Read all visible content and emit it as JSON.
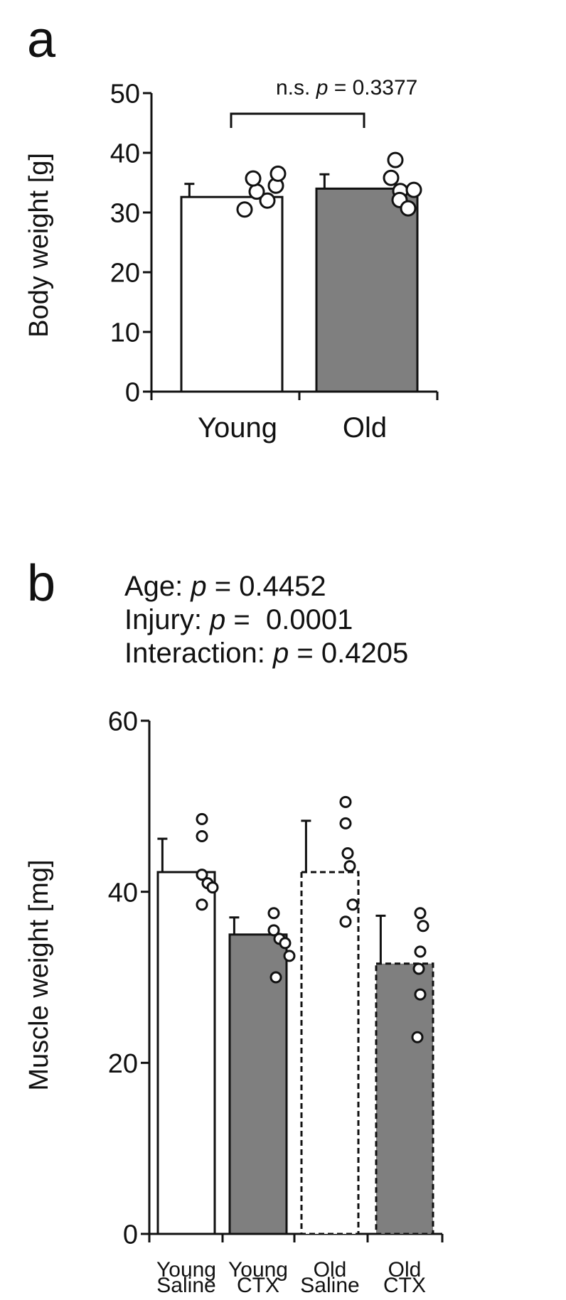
{
  "chart_data": [
    {
      "panel": "a",
      "type": "bar",
      "ylabel": "Body weight [g]",
      "ylim": [
        0,
        50
      ],
      "yticks": [
        "0",
        "10",
        "20",
        "30",
        "40",
        "50"
      ],
      "ytick_values": [
        0,
        10,
        20,
        30,
        40,
        50
      ],
      "categories": [
        "Young",
        "Old"
      ],
      "values": [
        32.6,
        34.0
      ],
      "errors": [
        2.2,
        2.4
      ],
      "bar_fills": [
        "#ffffff",
        "#7f7f7f"
      ],
      "bar_dashed": [
        false,
        false
      ],
      "points": [
        [
          32.0,
          33.5,
          34.5,
          35.7,
          36.5,
          30.5
        ],
        [
          33.6,
          35.8,
          38.8,
          33.8,
          32.1,
          30.7
        ]
      ],
      "annotation": {
        "prefix": "n.s. ",
        "p": "p",
        "value": " = 0.3377"
      }
    },
    {
      "panel": "b",
      "type": "bar",
      "ylabel": "Muscle weight [mg]",
      "ylim": [
        0,
        60
      ],
      "yticks": [
        "0",
        "20",
        "40",
        "60"
      ],
      "ytick_values": [
        0,
        20,
        40,
        60
      ],
      "categories": [
        [
          "Young",
          "Saline"
        ],
        [
          "Young",
          "CTX"
        ],
        [
          "Old",
          "Saline"
        ],
        [
          "Old",
          "CTX"
        ]
      ],
      "values": [
        42.3,
        35.0,
        42.3,
        31.6
      ],
      "errors": [
        3.9,
        2.0,
        6.0,
        5.6
      ],
      "bar_fills": [
        "#ffffff",
        "#7f7f7f",
        "#ffffff",
        "#7f7f7f"
      ],
      "bar_dashed": [
        false,
        false,
        true,
        true
      ],
      "points": [
        [
          48.5,
          46.5,
          42.0,
          41.0,
          38.5,
          40.5
        ],
        [
          37.5,
          35.5,
          34.5,
          34.0,
          32.5,
          30.0
        ],
        [
          50.5,
          48.0,
          44.5,
          43.0,
          38.5,
          36.5
        ],
        [
          37.5,
          36.0,
          33.0,
          31.0,
          28.0,
          23.0
        ]
      ],
      "stats": [
        {
          "label": "Age: ",
          "p": "p",
          "value": " = 0.4452"
        },
        {
          "label": "Injury: ",
          "p": "p",
          "value": " =  0.0001"
        },
        {
          "label": "Interaction: ",
          "p": "p",
          "value": " = 0.4205"
        }
      ]
    }
  ],
  "panel_labels": [
    "a",
    "b"
  ]
}
